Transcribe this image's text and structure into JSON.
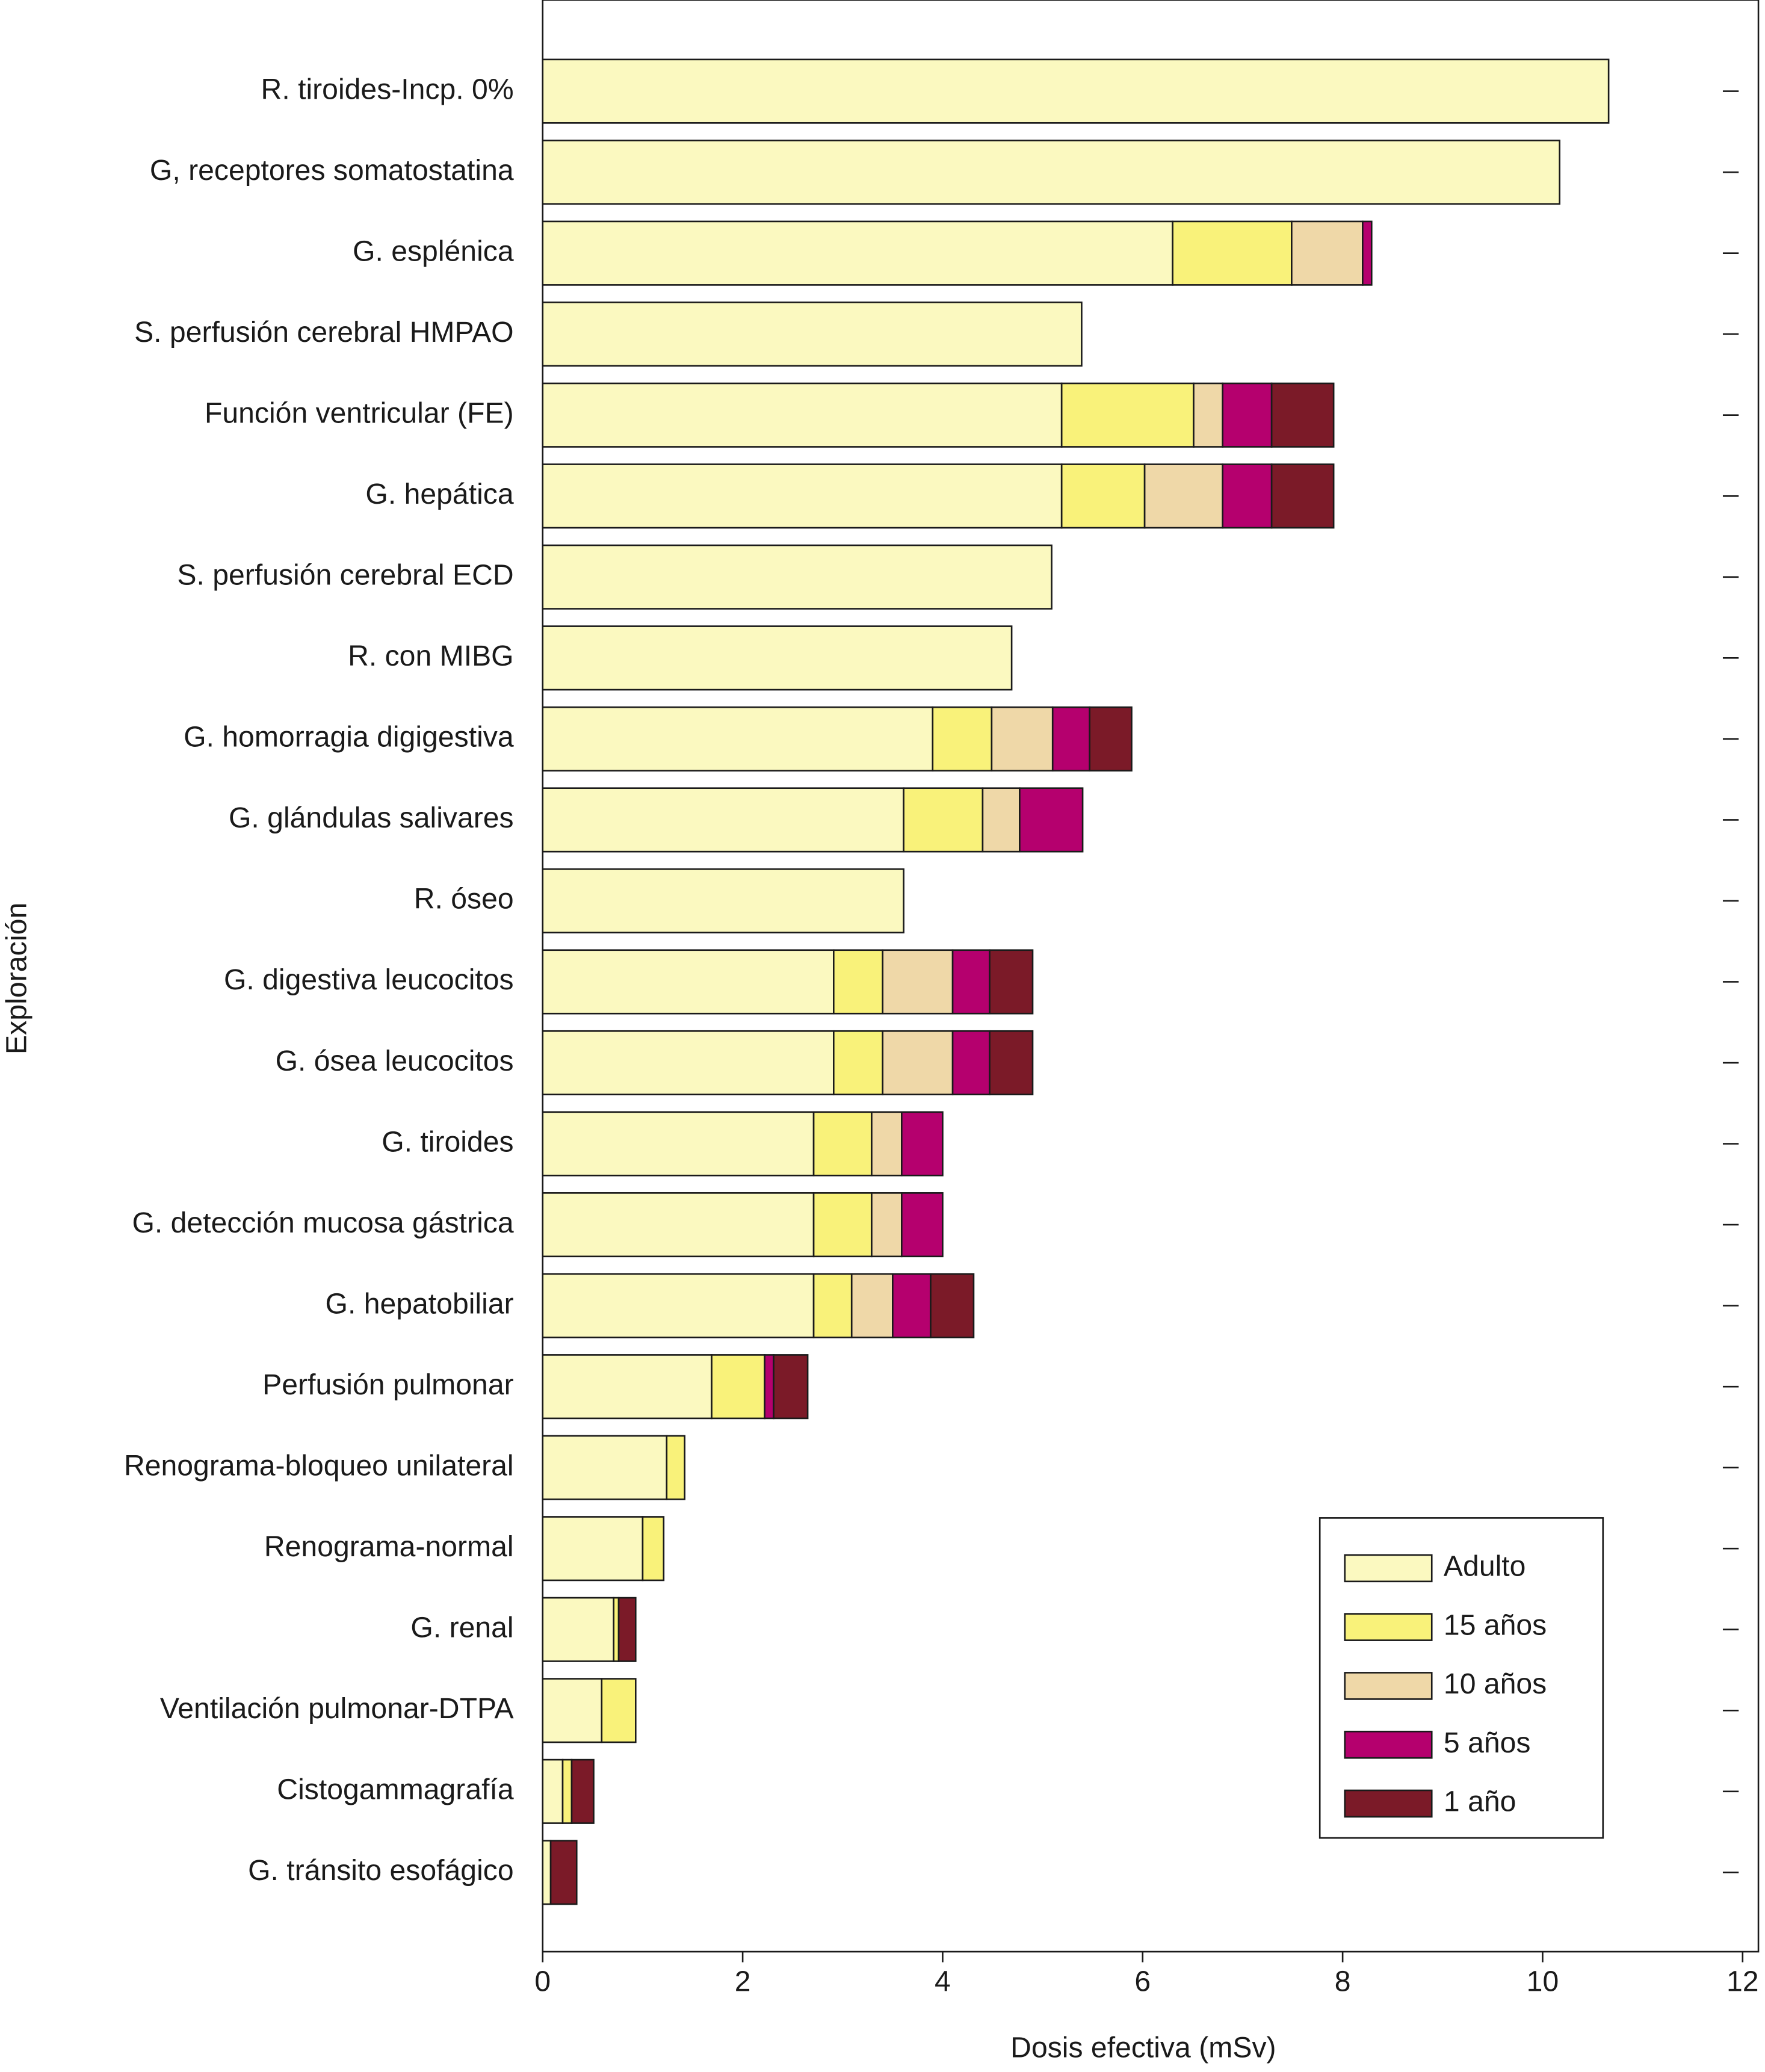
{
  "chart_data": {
    "type": "stacked-barh",
    "xlabel": "Dosis efectiva (mSv)",
    "ylabel": "Exploración",
    "xlim": [
      0,
      12
    ],
    "xticks": [
      0,
      2,
      4,
      6,
      8,
      10,
      12
    ],
    "legend": "lower right",
    "categories": [
      "R. tiroides-Incp. 0%",
      "G, receptores somatostatina",
      "G. esplénica",
      "S. perfusión cerebral HMPAO",
      "Función ventricular (FE)",
      "G. hepática",
      "S. perfusión cerebral ECD",
      "R. con MIBG",
      "G. homorragia digigestiva",
      "G. glándulas salivares",
      "R. óseo",
      "G. digestiva leucocitos",
      "G. ósea leucocitos",
      "G. tiroides",
      "G. detección mucosa gástrica",
      "G. hepatobiliar",
      "Perfusión pulmonar",
      "Renograma-bloqueo unilateral",
      "Renograma-normal",
      "G. renal",
      "Ventilación pulmonar-DTPA",
      "Cistogammagrafía",
      "G. tránsito esofágico"
    ],
    "series": [
      {
        "name": "Adulto",
        "color": "#fbf9c0",
        "values": [
          10.66,
          10.17,
          6.3,
          5.39,
          5.19,
          5.19,
          5.09,
          4.69,
          3.9,
          3.61,
          3.61,
          2.91,
          2.91,
          2.71,
          2.71,
          2.71,
          1.69,
          1.24,
          1.0,
          0.71,
          0.59,
          0.2,
          0.08
        ]
      },
      {
        "name": "15 años",
        "color": "#f9f27a",
        "values": [
          0,
          0,
          1.19,
          0,
          1.32,
          0.83,
          0,
          0,
          0.59,
          0.79,
          0,
          0.49,
          0.49,
          0.58,
          0.58,
          0.38,
          0.53,
          0.18,
          0.21,
          0.05,
          0.34,
          0.09,
          0
        ]
      },
      {
        "name": "10 años",
        "color": "#efd8a8",
        "values": [
          0,
          0,
          0.71,
          0,
          0.29,
          0.78,
          0,
          0,
          0.61,
          0.37,
          0,
          0.7,
          0.7,
          0.3,
          0.3,
          0.41,
          0,
          0,
          0,
          0,
          0,
          0,
          0
        ]
      },
      {
        "name": "5 años",
        "color": "#b5006e",
        "values": [
          0,
          0,
          0.09,
          0,
          0.49,
          0.49,
          0,
          0,
          0.37,
          0.63,
          0,
          0.37,
          0.37,
          0.41,
          0.41,
          0.38,
          0.09,
          0,
          0,
          0,
          0,
          0,
          0
        ]
      },
      {
        "name": "1 año",
        "color": "#7b1a28",
        "values": [
          0,
          0,
          0,
          0,
          0.62,
          0.62,
          0,
          0,
          0.42,
          0,
          0,
          0.43,
          0.43,
          0,
          0,
          0.43,
          0.34,
          0,
          0,
          0.17,
          0,
          0.22,
          0.26
        ]
      }
    ]
  }
}
